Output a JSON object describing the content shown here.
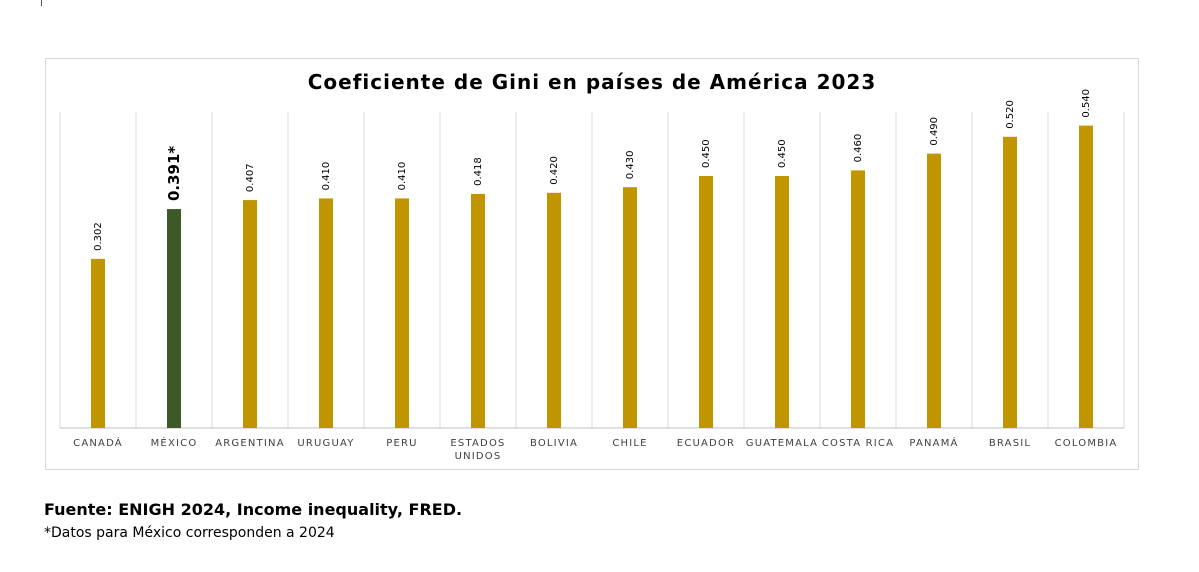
{
  "chart_data": {
    "type": "bar",
    "title": "Coeficiente de Gini en países de América 2023",
    "categories": [
      "CANADÁ",
      "MÉXICO",
      "ARGENTINA",
      "URUGUAY",
      "PERU",
      "ESTADOS UNIDOS",
      "BOLIVIA",
      "CHILE",
      "ECUADOR",
      "GUATEMALA",
      "COSTA RICA",
      "PANAMÁ",
      "BRASIL",
      "COLOMBIA"
    ],
    "values": [
      0.302,
      0.391,
      0.407,
      0.41,
      0.41,
      0.418,
      0.42,
      0.43,
      0.45,
      0.45,
      0.46,
      0.49,
      0.52,
      0.54
    ],
    "value_labels": [
      "0.302",
      "0.391*",
      "0.407",
      "0.410",
      "0.410",
      "0.418",
      "0.420",
      "0.430",
      "0.450",
      "0.450",
      "0.460",
      "0.490",
      "0.520",
      "0.540"
    ],
    "highlight_category": "MÉXICO",
    "ylim": [
      0,
      0.6
    ],
    "grid": true,
    "colors": {
      "bar": "#c09500",
      "highlight": "#3d5a26",
      "grid": "#d9d9d9",
      "axis": "#bfbfbf",
      "label": "#404040"
    }
  },
  "footer": {
    "source": "Fuente: ENIGH 2024, Income inequality, FRED.",
    "note": "*Datos para México corresponden a 2024"
  }
}
